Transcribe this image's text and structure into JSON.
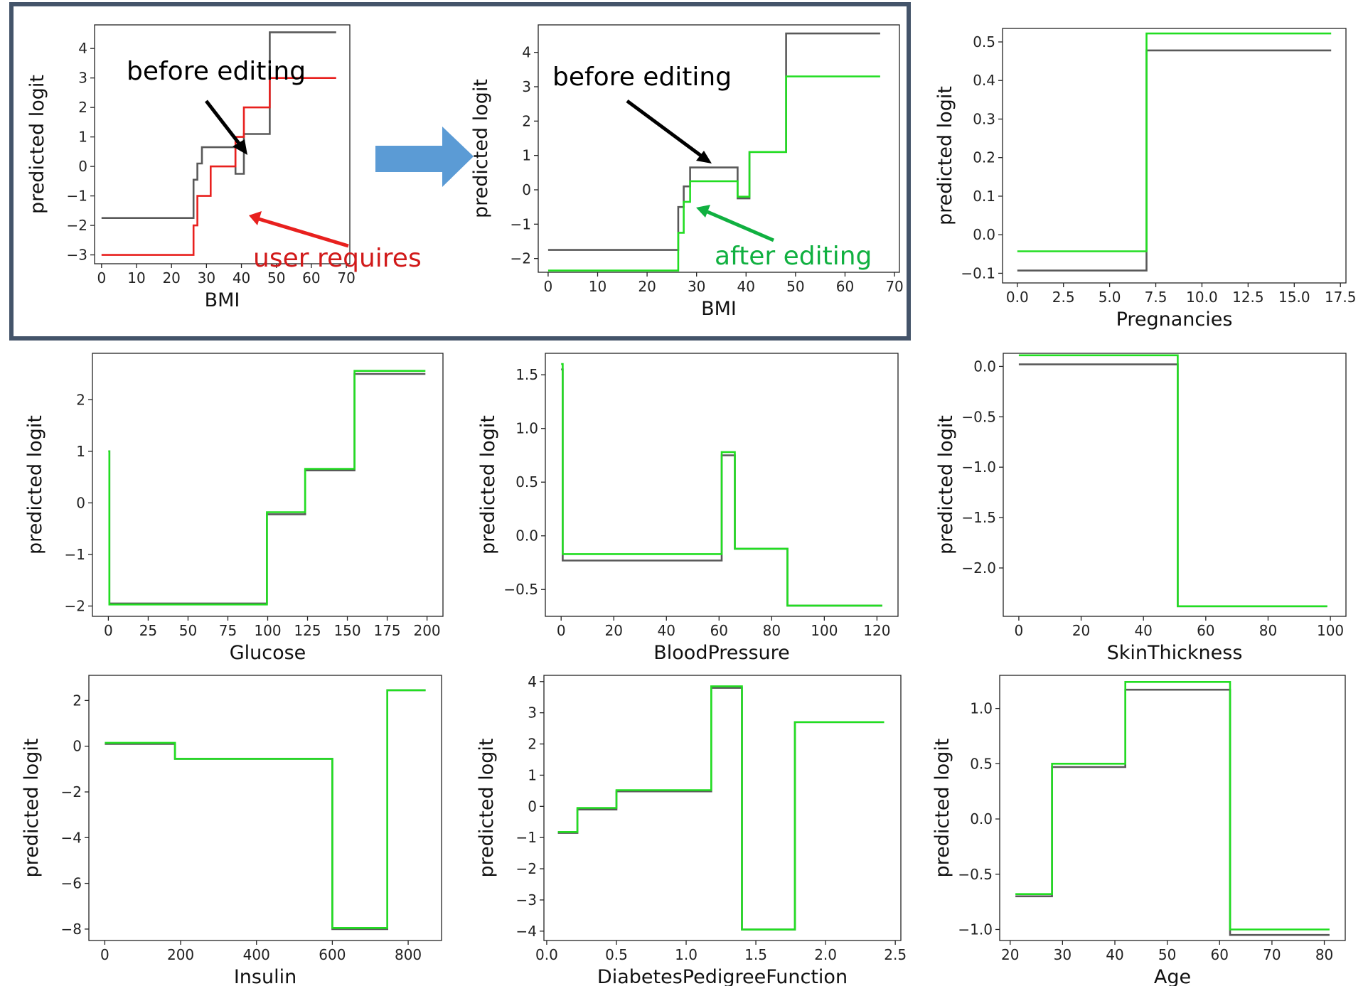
{
  "colors": {
    "before": "#595959",
    "after": "#22dd22",
    "user": "#e8201e",
    "user_text": "#d11a1a",
    "after_text": "#10b040",
    "frame": "#44546a",
    "big_arrow": "#5b9bd5",
    "arrow_black": "#000000"
  },
  "annotations": {
    "before_editing": "before editing",
    "user_requires": "user requires",
    "after_editing": "after editing"
  },
  "chart_data": [
    {
      "type": "line",
      "step": true,
      "xlabel": "BMI",
      "ylabel": "predicted logit",
      "xlim": [
        -2,
        71
      ],
      "ylim": [
        -3.3,
        4.8
      ],
      "xticks": [
        0,
        10,
        20,
        30,
        40,
        50,
        60,
        70
      ],
      "yticks": [
        -3,
        -2,
        -1,
        0,
        1,
        2,
        3,
        4
      ],
      "series": [
        {
          "role": "before",
          "x": [
            0,
            26.3,
            27.4,
            28.7,
            31.2,
            38.3,
            40.7,
            48.1,
            67.1
          ],
          "y": [
            -1.75,
            -0.45,
            0.1,
            0.65,
            0.65,
            -0.25,
            1.1,
            4.55,
            4.55
          ]
        },
        {
          "role": "user",
          "x": [
            0,
            26.3,
            27.4,
            28.7,
            31.2,
            38.3,
            40.7,
            48.1,
            67.1
          ],
          "y": [
            -3.0,
            -2.0,
            -1.0,
            -1.0,
            0.0,
            1.0,
            2.0,
            3.0,
            3.0
          ]
        }
      ]
    },
    {
      "type": "line",
      "step": true,
      "xlabel": "BMI",
      "ylabel": "predicted logit",
      "xlim": [
        -2,
        71
      ],
      "ylim": [
        -2.4,
        4.8
      ],
      "xticks": [
        0,
        10,
        20,
        30,
        40,
        50,
        60,
        70
      ],
      "yticks": [
        -2,
        -1,
        0,
        1,
        2,
        3,
        4
      ],
      "series": [
        {
          "role": "before",
          "x": [
            0,
            26.3,
            27.4,
            28.7,
            31.2,
            38.3,
            40.7,
            48.1,
            67.1
          ],
          "y": [
            -1.75,
            -0.5,
            0.1,
            0.65,
            0.65,
            -0.25,
            1.1,
            4.55,
            4.55
          ]
        },
        {
          "role": "after",
          "x": [
            0,
            26.3,
            27.4,
            28.7,
            31.2,
            38.3,
            40.7,
            48.1,
            67.1
          ],
          "y": [
            -2.35,
            -1.25,
            -0.35,
            0.25,
            0.25,
            -0.2,
            1.1,
            3.3,
            3.3
          ]
        }
      ]
    },
    {
      "type": "line",
      "step": true,
      "xlabel": "Pregnancies",
      "ylabel": "predicted logit",
      "xlim": [
        -0.8,
        17.8
      ],
      "ylim": [
        -0.125,
        0.535
      ],
      "xticks": [
        0,
        2.5,
        5,
        7.5,
        10,
        12.5,
        15,
        17.5
      ],
      "xtick_labels": [
        "0.0",
        "2.5",
        "5.0",
        "7.5",
        "10.0",
        "12.5",
        "15.0",
        "17.5"
      ],
      "yticks": [
        -0.1,
        0,
        0.1,
        0.2,
        0.3,
        0.4,
        0.5
      ],
      "ytick_labels": [
        "−0.1",
        "0.0",
        "0.1",
        "0.2",
        "0.3",
        "0.4",
        "0.5"
      ],
      "series": [
        {
          "role": "before",
          "x": [
            0,
            7,
            17
          ],
          "y": [
            -0.093,
            0.478,
            0.478
          ]
        },
        {
          "role": "after",
          "x": [
            0,
            7,
            17
          ],
          "y": [
            -0.043,
            0.522,
            0.522
          ]
        }
      ]
    },
    {
      "type": "line",
      "step": true,
      "xlabel": "Glucose",
      "ylabel": "predicted logit",
      "xlim": [
        -10,
        210
      ],
      "ylim": [
        -2.2,
        2.9
      ],
      "xticks": [
        0,
        25,
        50,
        75,
        100,
        125,
        150,
        175,
        200
      ],
      "yticks": [
        -2,
        -1,
        0,
        1,
        2
      ],
      "series": [
        {
          "role": "before",
          "x": [
            0,
            0.6,
            99.5,
            123.5,
            154.5,
            199
          ],
          "y": [
            1.0,
            -1.95,
            -0.22,
            0.63,
            2.5,
            2.5
          ]
        },
        {
          "role": "after",
          "x": [
            0,
            0.6,
            99.5,
            123.5,
            154.5,
            199
          ],
          "y": [
            1.0,
            -1.97,
            -0.18,
            0.66,
            2.56,
            2.56
          ]
        }
      ]
    },
    {
      "type": "line",
      "step": true,
      "xlabel": "BloodPressure",
      "ylabel": "predicted logit",
      "xlim": [
        -6,
        128
      ],
      "ylim": [
        -0.75,
        1.7
      ],
      "xticks": [
        0,
        20,
        40,
        60,
        80,
        100,
        120
      ],
      "yticks": [
        -0.5,
        0,
        0.5,
        1.0,
        1.5
      ],
      "ytick_labels": [
        "−0.5",
        "0.0",
        "0.5",
        "1.0",
        "1.5"
      ],
      "series": [
        {
          "role": "before",
          "x": [
            0,
            0.6,
            61,
            66,
            86,
            122
          ],
          "y": [
            1.55,
            -0.23,
            0.75,
            -0.12,
            -0.65,
            -0.65
          ]
        },
        {
          "role": "after",
          "x": [
            0,
            0.6,
            61,
            66,
            86,
            122
          ],
          "y": [
            1.6,
            -0.17,
            0.78,
            -0.12,
            -0.65,
            -0.65
          ]
        }
      ]
    },
    {
      "type": "line",
      "step": true,
      "xlabel": "SkinThickness",
      "ylabel": "predicted logit",
      "xlim": [
        -5,
        105
      ],
      "ylim": [
        -2.48,
        0.13
      ],
      "xticks": [
        0,
        20,
        40,
        60,
        80,
        100
      ],
      "yticks": [
        -2.0,
        -1.5,
        -1.0,
        -0.5,
        0.0
      ],
      "ytick_labels": [
        "−2.0",
        "−1.5",
        "−1.0",
        "−0.5",
        "0.0"
      ],
      "series": [
        {
          "role": "before",
          "x": [
            0,
            51,
            99
          ],
          "y": [
            0.02,
            -2.38,
            -2.38
          ]
        },
        {
          "role": "after",
          "x": [
            0,
            51,
            99
          ],
          "y": [
            0.11,
            -2.38,
            -2.38
          ]
        }
      ]
    },
    {
      "type": "line",
      "step": true,
      "xlabel": "Insulin",
      "ylabel": "predicted logit",
      "xlim": [
        -42,
        888
      ],
      "ylim": [
        -8.5,
        3.1
      ],
      "xticks": [
        0,
        200,
        400,
        600,
        800
      ],
      "yticks": [
        -8,
        -6,
        -4,
        -2,
        0,
        2
      ],
      "series": [
        {
          "role": "before",
          "x": [
            0,
            185,
            600,
            745,
            846
          ],
          "y": [
            0.1,
            -0.55,
            -8.0,
            2.45,
            2.45
          ]
        },
        {
          "role": "after",
          "x": [
            0,
            185,
            600,
            745,
            846
          ],
          "y": [
            0.15,
            -0.55,
            -7.95,
            2.45,
            2.45
          ]
        }
      ]
    },
    {
      "type": "line",
      "step": true,
      "xlabel": "DiabetesPedigreeFunction",
      "ylabel": "predicted logit",
      "xlim": [
        -0.02,
        2.54
      ],
      "ylim": [
        -4.3,
        4.2
      ],
      "xticks": [
        0,
        0.5,
        1.0,
        1.5,
        2.0,
        2.5
      ],
      "xtick_labels": [
        "0.0",
        "0.5",
        "1.0",
        "1.5",
        "2.0",
        "2.5"
      ],
      "yticks": [
        -4,
        -3,
        -2,
        -1,
        0,
        1,
        2,
        3,
        4
      ],
      "series": [
        {
          "role": "before",
          "x": [
            0.08,
            0.22,
            0.5,
            1.18,
            1.4,
            1.78,
            2.42
          ],
          "y": [
            -0.85,
            -0.1,
            0.48,
            3.8,
            -3.95,
            2.7,
            2.7
          ]
        },
        {
          "role": "after",
          "x": [
            0.08,
            0.22,
            0.5,
            1.18,
            1.4,
            1.78,
            2.42
          ],
          "y": [
            -0.82,
            -0.05,
            0.52,
            3.85,
            -3.95,
            2.7,
            2.7
          ]
        }
      ]
    },
    {
      "type": "line",
      "step": true,
      "xlabel": "Age",
      "ylabel": "predicted logit",
      "xlim": [
        18,
        84
      ],
      "ylim": [
        -1.1,
        1.3
      ],
      "xticks": [
        20,
        30,
        40,
        50,
        60,
        70,
        80
      ],
      "yticks": [
        -1.0,
        -0.5,
        0.0,
        0.5,
        1.0
      ],
      "ytick_labels": [
        "−1.0",
        "−0.5",
        "0.0",
        "0.5",
        "1.0"
      ],
      "series": [
        {
          "role": "before",
          "x": [
            21,
            28,
            42,
            62,
            81
          ],
          "y": [
            -0.7,
            0.47,
            1.17,
            -1.05,
            -1.05
          ]
        },
        {
          "role": "after",
          "x": [
            21,
            28,
            42,
            62,
            81
          ],
          "y": [
            -0.68,
            0.5,
            1.24,
            -1.0,
            -1.0
          ]
        }
      ]
    }
  ]
}
